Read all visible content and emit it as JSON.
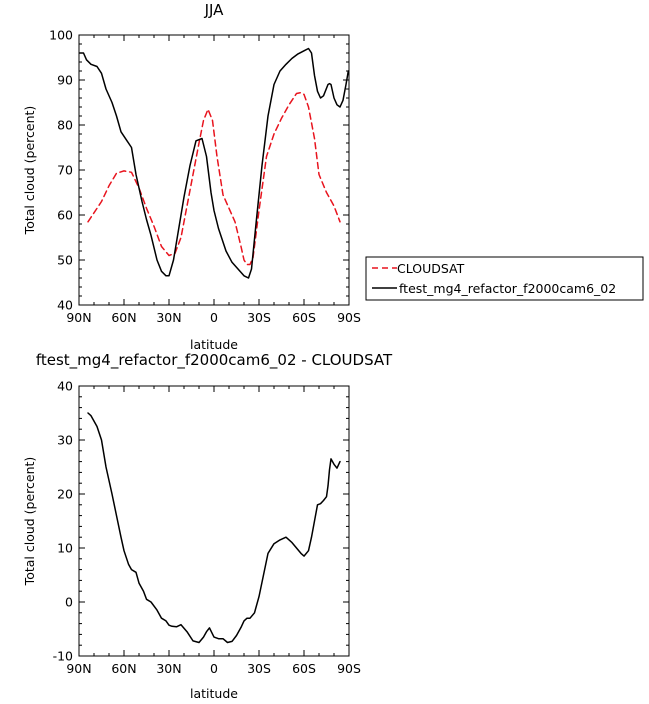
{
  "chart_data": [
    {
      "type": "line",
      "title": "JJA",
      "xlabel": "latitude",
      "ylabel": "Total cloud (percent)",
      "xlim": [
        90,
        -90
      ],
      "ylim": [
        40,
        100
      ],
      "x_tick_values": [
        90,
        60,
        30,
        0,
        -30,
        -60,
        -90
      ],
      "x_tick_labels": [
        "90N",
        "60N",
        "30N",
        "0",
        "30S",
        "60S",
        "90S"
      ],
      "y_tick_values": [
        40,
        50,
        60,
        70,
        80,
        90,
        100
      ],
      "y_tick_labels": [
        "40",
        "50",
        "60",
        "70",
        "80",
        "90",
        "100"
      ],
      "legend_position": "right, outside plot",
      "grid": false,
      "series": [
        {
          "name": "CLOUDSAT",
          "color": "#e8141e",
          "style": "dashed",
          "x": [
            84,
            80,
            75,
            70,
            65,
            60,
            55,
            50,
            45,
            40,
            35,
            30,
            26,
            22,
            18,
            14,
            10,
            7,
            4,
            1,
            -2,
            -6,
            -10,
            -14,
            -18,
            -20,
            -22,
            -24,
            -26,
            -30,
            -35,
            -40,
            -45,
            -50,
            -55,
            -58,
            -60,
            -63,
            -67,
            -70,
            -75,
            -80,
            -84
          ],
          "y": [
            58.5,
            60.5,
            63,
            66.5,
            69.3,
            69.8,
            69.5,
            66,
            61.5,
            57.5,
            53,
            51,
            51.5,
            55,
            62,
            69,
            76,
            81,
            83.5,
            81,
            73,
            64.5,
            61.5,
            58.5,
            53,
            50,
            49,
            49,
            50.5,
            61,
            73,
            78,
            81.5,
            84.5,
            87,
            87.2,
            86.8,
            84,
            77,
            69,
            65,
            62,
            58.5
          ]
        },
        {
          "name": "ftest_mg4_refactor_f2000cam6_02",
          "color": "#000000",
          "style": "solid",
          "x": [
            89.5,
            87,
            85,
            82,
            78,
            75,
            72,
            68,
            65,
            62,
            58,
            55,
            52,
            48,
            45,
            42,
            38,
            35,
            32,
            30,
            27,
            24,
            20,
            16,
            12,
            8,
            5,
            2,
            0,
            -3,
            -8,
            -12,
            -16,
            -20,
            -23,
            -25,
            -28,
            -32,
            -36,
            -40,
            -44,
            -48,
            -52,
            -56,
            -60,
            -63,
            -65,
            -67,
            -69,
            -71,
            -73,
            -76,
            -77,
            -78,
            -80,
            -82,
            -84,
            -86,
            -88,
            -89.5
          ],
          "y": [
            96,
            96,
            94.5,
            93.5,
            93,
            91.5,
            88,
            85,
            82,
            78.5,
            76.5,
            75,
            69,
            63,
            59,
            55.5,
            50,
            47.5,
            46.5,
            46.5,
            50,
            56,
            64,
            71,
            76.5,
            77,
            73,
            65,
            61,
            57,
            52,
            49.5,
            48,
            46.5,
            46,
            48,
            58,
            71,
            82,
            89,
            92,
            93.5,
            94.8,
            95.8,
            96.5,
            97,
            96,
            91,
            87.5,
            86,
            86.5,
            89,
            89.2,
            89,
            86,
            84.5,
            84,
            85.5,
            89,
            92
          ]
        }
      ]
    },
    {
      "type": "line",
      "title": "ftest_mg4_refactor_f2000cam6_02 - CLOUDSAT",
      "xlabel": "latitude",
      "ylabel": "Total cloud (percent)",
      "xlim": [
        90,
        -90
      ],
      "ylim": [
        -10,
        40
      ],
      "x_tick_values": [
        90,
        60,
        30,
        0,
        -30,
        -60,
        -90
      ],
      "x_tick_labels": [
        "90N",
        "60N",
        "30N",
        "0",
        "30S",
        "60S",
        "90S"
      ],
      "y_tick_values": [
        -10,
        0,
        10,
        20,
        30,
        40
      ],
      "y_tick_labels": [
        "-10",
        "0",
        "10",
        "20",
        "30",
        "40"
      ],
      "grid": false,
      "series": [
        {
          "color": "#000000",
          "style": "solid",
          "x": [
            84,
            82,
            78,
            75,
            72,
            68,
            65,
            62,
            60,
            57,
            55,
            52,
            50,
            47,
            45,
            42,
            38,
            35,
            32,
            30,
            28,
            25,
            22,
            18,
            14,
            10,
            7,
            5,
            3,
            0,
            -3,
            -6,
            -9,
            -12,
            -15,
            -18,
            -20,
            -22,
            -24,
            -27,
            -30,
            -33,
            -36,
            -40,
            -44,
            -48,
            -52,
            -55,
            -58,
            -60,
            -63,
            -65,
            -67,
            -69,
            -71,
            -73,
            -75,
            -76,
            -77,
            -78,
            -80,
            -82,
            -84
          ],
          "y": [
            35,
            34.5,
            32.5,
            30,
            25,
            20,
            16,
            12,
            9.5,
            7,
            6,
            5.5,
            3.5,
            2,
            0.5,
            0,
            -1.5,
            -3,
            -3.5,
            -4.3,
            -4.5,
            -4.6,
            -4.2,
            -5.5,
            -7.2,
            -7.5,
            -6.5,
            -5.5,
            -4.8,
            -6.5,
            -6.8,
            -6.8,
            -7.5,
            -7.3,
            -6.2,
            -4.7,
            -3.5,
            -3,
            -3,
            -2,
            1,
            5,
            9,
            10.8,
            11.5,
            12,
            11,
            10,
            9,
            8.5,
            9.5,
            12,
            15,
            18,
            18.2,
            18.8,
            19.5,
            21.5,
            24.5,
            26.5,
            25.5,
            24.8,
            26
          ]
        }
      ]
    }
  ]
}
